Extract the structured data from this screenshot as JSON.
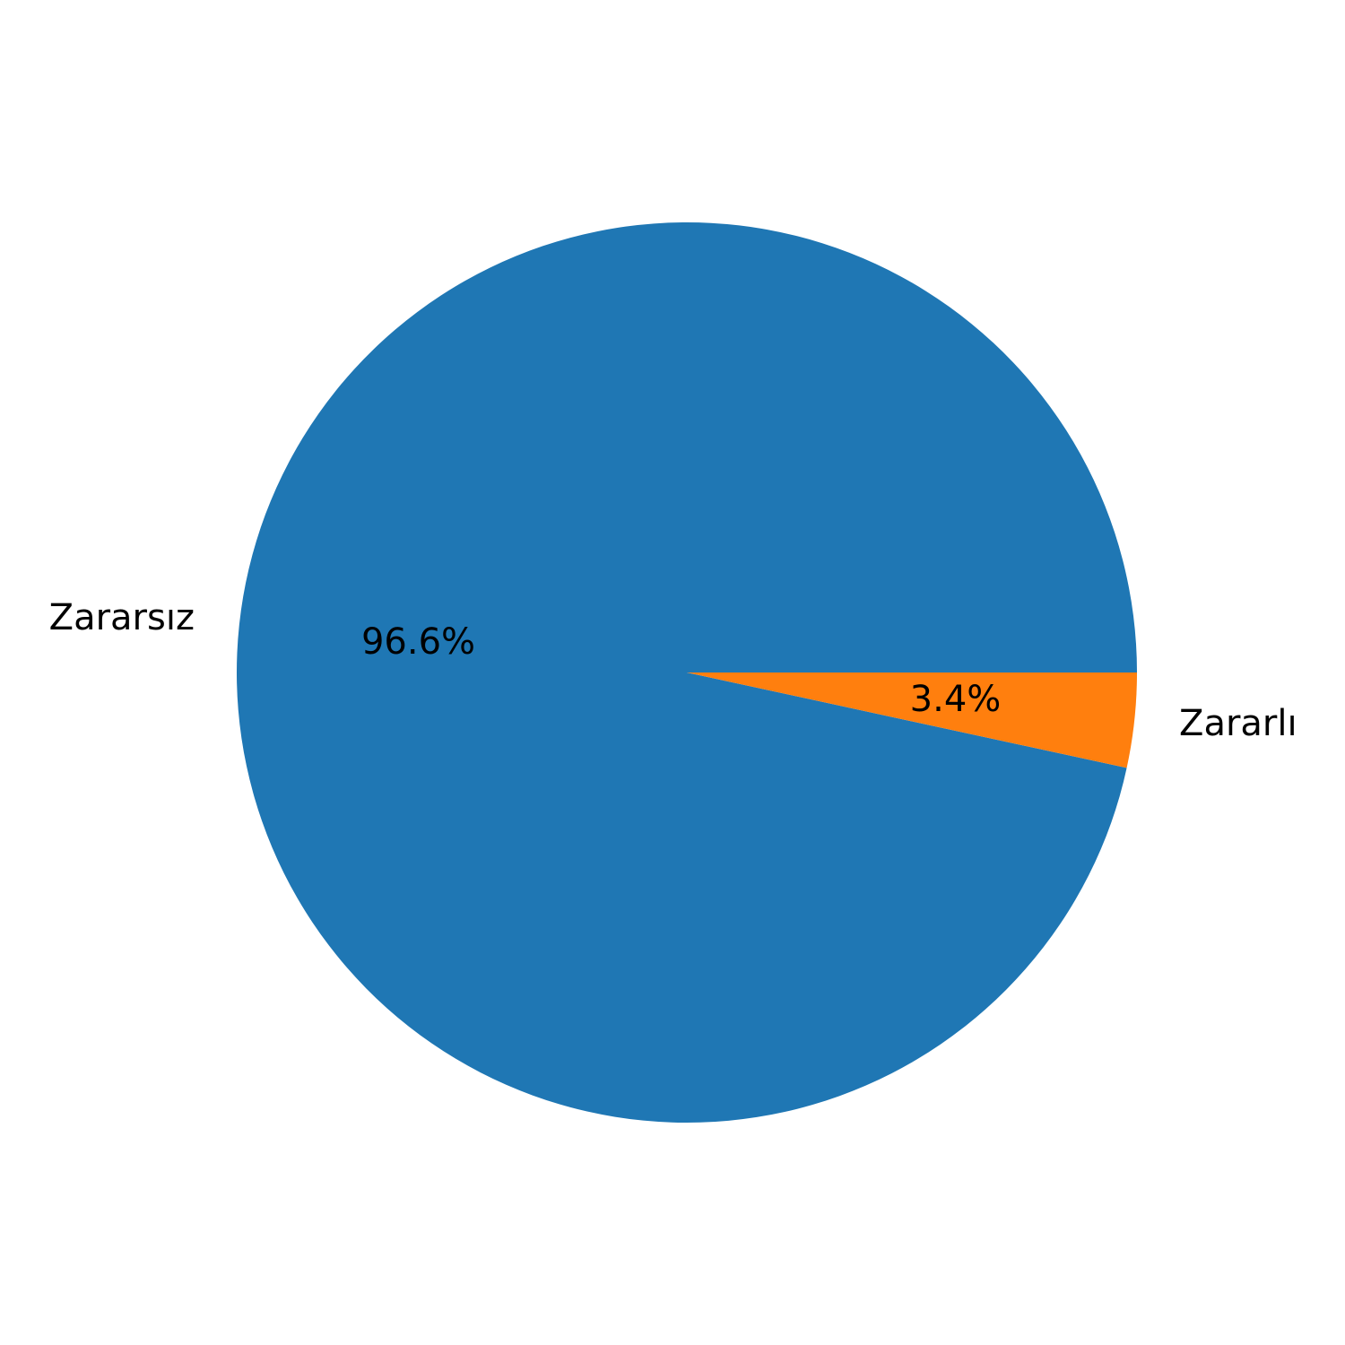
{
  "chart_data": {
    "type": "pie",
    "title": "",
    "start_angle_deg": 0,
    "direction": "counterclockwise",
    "slices": [
      {
        "label": "Zararsız",
        "value": 96.6,
        "value_label": "96.6%",
        "color": "#1f77b4"
      },
      {
        "label": "Zararlı",
        "value": 3.4,
        "value_label": "3.4%",
        "color": "#ff7f0e"
      }
    ]
  }
}
